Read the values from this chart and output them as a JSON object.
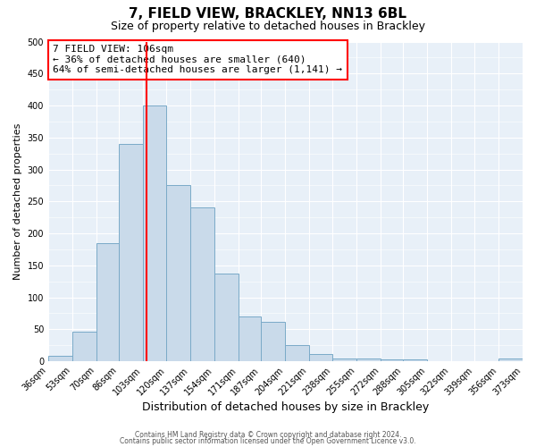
{
  "title": "7, FIELD VIEW, BRACKLEY, NN13 6BL",
  "subtitle": "Size of property relative to detached houses in Brackley",
  "xlabel": "Distribution of detached houses by size in Brackley",
  "ylabel": "Number of detached properties",
  "bins": [
    36,
    53,
    70,
    86,
    103,
    120,
    137,
    154,
    171,
    187,
    204,
    221,
    238,
    255,
    272,
    288,
    305,
    322,
    339,
    356,
    373
  ],
  "counts": [
    8,
    46,
    185,
    340,
    400,
    275,
    240,
    137,
    70,
    62,
    25,
    11,
    5,
    4,
    3,
    3,
    0,
    0,
    0,
    4
  ],
  "bar_color": "#c9daea",
  "bar_edge_color": "#7aaac8",
  "property_value": 106,
  "vline_color": "red",
  "annotation_text": "7 FIELD VIEW: 106sqm\n← 36% of detached houses are smaller (640)\n64% of semi-detached houses are larger (1,141) →",
  "annotation_box_color": "white",
  "annotation_box_edge_color": "red",
  "ylim": [
    0,
    500
  ],
  "yticks": [
    0,
    50,
    100,
    150,
    200,
    250,
    300,
    350,
    400,
    450,
    500
  ],
  "tick_labels": [
    "36sqm",
    "53sqm",
    "70sqm",
    "86sqm",
    "103sqm",
    "120sqm",
    "137sqm",
    "154sqm",
    "171sqm",
    "187sqm",
    "204sqm",
    "221sqm",
    "238sqm",
    "255sqm",
    "272sqm",
    "288sqm",
    "305sqm",
    "322sqm",
    "339sqm",
    "356sqm",
    "373sqm"
  ],
  "footer_line1": "Contains HM Land Registry data © Crown copyright and database right 2024.",
  "footer_line2": "Contains public sector information licensed under the Open Government Licence v3.0.",
  "background_color": "#ffffff",
  "plot_bg_color": "#e8f0f8"
}
